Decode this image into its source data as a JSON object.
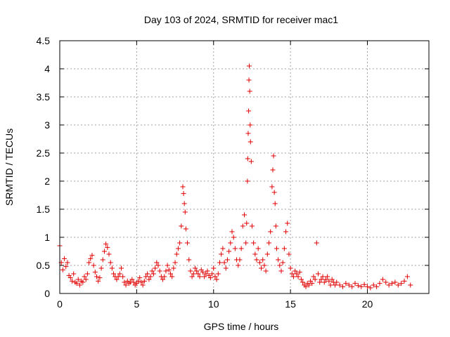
{
  "chart_data": {
    "type": "scatter",
    "title": "Day 103 of 2024, SRMTID for receiver mac1",
    "xlabel": "GPS time / hours",
    "ylabel": "SRMTID / TECUs",
    "xlim": [
      0,
      24
    ],
    "ylim": [
      0,
      4.5
    ],
    "xticks": [
      0,
      5,
      10,
      15,
      20
    ],
    "yticks": [
      0,
      0.5,
      1,
      1.5,
      2,
      2.5,
      3,
      3.5,
      4,
      4.5
    ],
    "xtick_labels": [
      "0",
      "5",
      "10",
      "15",
      "20"
    ],
    "ytick_labels": [
      "0",
      "0.5",
      "1",
      "1.5",
      "2",
      "2.5",
      "3",
      "3.5",
      "4",
      "4.5"
    ],
    "grid": true,
    "marker": "plus",
    "color": "#e00000",
    "series": [
      {
        "name": "mac1",
        "points": [
          [
            0.0,
            0.85
          ],
          [
            0.1,
            0.55
          ],
          [
            0.2,
            0.42
          ],
          [
            0.3,
            0.62
          ],
          [
            0.4,
            0.48
          ],
          [
            0.5,
            0.55
          ],
          [
            0.6,
            0.32
          ],
          [
            0.7,
            0.28
          ],
          [
            0.8,
            0.22
          ],
          [
            0.9,
            0.35
          ],
          [
            1.0,
            0.2
          ],
          [
            1.1,
            0.18
          ],
          [
            1.2,
            0.25
          ],
          [
            1.3,
            0.15
          ],
          [
            1.4,
            0.22
          ],
          [
            1.5,
            0.2
          ],
          [
            1.6,
            0.3
          ],
          [
            1.7,
            0.25
          ],
          [
            1.8,
            0.35
          ],
          [
            1.9,
            0.55
          ],
          [
            2.0,
            0.62
          ],
          [
            2.1,
            0.68
          ],
          [
            2.2,
            0.5
          ],
          [
            2.3,
            0.38
          ],
          [
            2.4,
            0.3
          ],
          [
            2.5,
            0.22
          ],
          [
            2.6,
            0.28
          ],
          [
            2.7,
            0.45
          ],
          [
            2.8,
            0.6
          ],
          [
            2.9,
            0.75
          ],
          [
            3.0,
            0.88
          ],
          [
            3.1,
            0.82
          ],
          [
            3.2,
            0.7
          ],
          [
            3.3,
            0.55
          ],
          [
            3.4,
            0.45
          ],
          [
            3.5,
            0.35
          ],
          [
            3.6,
            0.3
          ],
          [
            3.7,
            0.25
          ],
          [
            3.8,
            0.3
          ],
          [
            3.9,
            0.35
          ],
          [
            4.0,
            0.45
          ],
          [
            4.1,
            0.3
          ],
          [
            4.2,
            0.2
          ],
          [
            4.3,
            0.15
          ],
          [
            4.4,
            0.22
          ],
          [
            4.5,
            0.18
          ],
          [
            4.6,
            0.2
          ],
          [
            4.7,
            0.25
          ],
          [
            4.8,
            0.2
          ],
          [
            4.9,
            0.15
          ],
          [
            5.0,
            0.18
          ],
          [
            5.1,
            0.22
          ],
          [
            5.2,
            0.28
          ],
          [
            5.3,
            0.2
          ],
          [
            5.4,
            0.15
          ],
          [
            5.5,
            0.22
          ],
          [
            5.6,
            0.3
          ],
          [
            5.7,
            0.35
          ],
          [
            5.8,
            0.25
          ],
          [
            5.9,
            0.3
          ],
          [
            6.0,
            0.4
          ],
          [
            6.1,
            0.35
          ],
          [
            6.2,
            0.45
          ],
          [
            6.3,
            0.55
          ],
          [
            6.4,
            0.5
          ],
          [
            6.5,
            0.4
          ],
          [
            6.6,
            0.3
          ],
          [
            6.7,
            0.25
          ],
          [
            6.8,
            0.3
          ],
          [
            6.9,
            0.4
          ],
          [
            7.0,
            0.5
          ],
          [
            7.1,
            0.42
          ],
          [
            7.2,
            0.35
          ],
          [
            7.3,
            0.3
          ],
          [
            7.4,
            0.45
          ],
          [
            7.5,
            0.55
          ],
          [
            7.6,
            0.7
          ],
          [
            7.7,
            0.8
          ],
          [
            7.8,
            0.9
          ],
          [
            7.9,
            1.2
          ],
          [
            8.0,
            1.9
          ],
          [
            8.05,
            1.78
          ],
          [
            8.1,
            1.6
          ],
          [
            8.15,
            1.45
          ],
          [
            8.2,
            1.15
          ],
          [
            8.3,
            0.9
          ],
          [
            8.4,
            0.6
          ],
          [
            8.5,
            0.4
          ],
          [
            8.6,
            0.3
          ],
          [
            8.7,
            0.35
          ],
          [
            8.8,
            0.45
          ],
          [
            8.9,
            0.4
          ],
          [
            9.0,
            0.35
          ],
          [
            9.1,
            0.3
          ],
          [
            9.2,
            0.42
          ],
          [
            9.3,
            0.38
          ],
          [
            9.4,
            0.3
          ],
          [
            9.5,
            0.35
          ],
          [
            9.6,
            0.4
          ],
          [
            9.7,
            0.32
          ],
          [
            9.8,
            0.28
          ],
          [
            9.9,
            0.35
          ],
          [
            10.0,
            0.45
          ],
          [
            10.1,
            0.3
          ],
          [
            10.2,
            0.25
          ],
          [
            10.3,
            0.35
          ],
          [
            10.4,
            0.55
          ],
          [
            10.5,
            0.7
          ],
          [
            10.6,
            0.8
          ],
          [
            10.7,
            0.55
          ],
          [
            10.8,
            0.45
          ],
          [
            10.9,
            0.6
          ],
          [
            11.0,
            0.75
          ],
          [
            11.1,
            0.9
          ],
          [
            11.2,
            1.1
          ],
          [
            11.3,
            1.0
          ],
          [
            11.4,
            0.8
          ],
          [
            11.5,
            0.6
          ],
          [
            11.6,
            0.5
          ],
          [
            11.7,
            0.6
          ],
          [
            11.8,
            0.8
          ],
          [
            11.9,
            1.2
          ],
          [
            12.0,
            1.4
          ],
          [
            12.1,
            0.9
          ],
          [
            12.15,
            1.25
          ],
          [
            12.2,
            2.0
          ],
          [
            12.22,
            2.4
          ],
          [
            12.25,
            2.85
          ],
          [
            12.28,
            3.25
          ],
          [
            12.3,
            3.8
          ],
          [
            12.32,
            4.05
          ],
          [
            12.35,
            3.6
          ],
          [
            12.38,
            3.0
          ],
          [
            12.4,
            2.7
          ],
          [
            12.45,
            2.35
          ],
          [
            12.5,
            1.2
          ],
          [
            12.6,
            0.9
          ],
          [
            12.7,
            0.7
          ],
          [
            12.8,
            0.6
          ],
          [
            12.9,
            0.8
          ],
          [
            13.0,
            0.55
          ],
          [
            13.1,
            0.45
          ],
          [
            13.2,
            0.6
          ],
          [
            13.3,
            0.5
          ],
          [
            13.4,
            0.4
          ],
          [
            13.5,
            0.7
          ],
          [
            13.6,
            0.9
          ],
          [
            13.7,
            1.1
          ],
          [
            13.8,
            1.9
          ],
          [
            13.85,
            2.2
          ],
          [
            13.9,
            2.45
          ],
          [
            13.95,
            1.8
          ],
          [
            14.0,
            1.6
          ],
          [
            14.05,
            1.2
          ],
          [
            14.1,
            0.8
          ],
          [
            14.2,
            0.6
          ],
          [
            14.3,
            0.5
          ],
          [
            14.4,
            0.4
          ],
          [
            14.5,
            0.55
          ],
          [
            14.6,
            0.8
          ],
          [
            14.7,
            1.1
          ],
          [
            14.8,
            1.25
          ],
          [
            14.9,
            0.7
          ],
          [
            15.0,
            0.45
          ],
          [
            15.1,
            0.35
          ],
          [
            15.2,
            0.3
          ],
          [
            15.3,
            0.4
          ],
          [
            15.4,
            0.35
          ],
          [
            15.5,
            0.3
          ],
          [
            15.6,
            0.38
          ],
          [
            15.7,
            0.25
          ],
          [
            15.8,
            0.2
          ],
          [
            15.9,
            0.15
          ],
          [
            16.0,
            0.12
          ],
          [
            16.1,
            0.18
          ],
          [
            16.2,
            0.15
          ],
          [
            16.3,
            0.22
          ],
          [
            16.4,
            0.18
          ],
          [
            16.5,
            0.3
          ],
          [
            16.6,
            0.25
          ],
          [
            16.7,
            0.9
          ],
          [
            16.8,
            0.35
          ],
          [
            16.9,
            0.2
          ],
          [
            17.0,
            0.25
          ],
          [
            17.1,
            0.3
          ],
          [
            17.2,
            0.2
          ],
          [
            17.3,
            0.25
          ],
          [
            17.4,
            0.3
          ],
          [
            17.5,
            0.22
          ],
          [
            17.6,
            0.15
          ],
          [
            17.7,
            0.25
          ],
          [
            17.8,
            0.2
          ],
          [
            17.9,
            0.15
          ],
          [
            18.0,
            0.2
          ],
          [
            18.2,
            0.15
          ],
          [
            18.4,
            0.12
          ],
          [
            18.6,
            0.18
          ],
          [
            18.8,
            0.15
          ],
          [
            19.0,
            0.12
          ],
          [
            19.2,
            0.18
          ],
          [
            19.4,
            0.14
          ],
          [
            19.6,
            0.12
          ],
          [
            19.8,
            0.16
          ],
          [
            20.0,
            0.12
          ],
          [
            20.2,
            0.1
          ],
          [
            20.4,
            0.15
          ],
          [
            20.6,
            0.12
          ],
          [
            20.8,
            0.18
          ],
          [
            21.0,
            0.25
          ],
          [
            21.2,
            0.2
          ],
          [
            21.4,
            0.15
          ],
          [
            21.6,
            0.18
          ],
          [
            21.8,
            0.2
          ],
          [
            22.0,
            0.15
          ],
          [
            22.2,
            0.18
          ],
          [
            22.4,
            0.22
          ],
          [
            22.6,
            0.3
          ],
          [
            22.8,
            0.15
          ]
        ]
      }
    ]
  }
}
